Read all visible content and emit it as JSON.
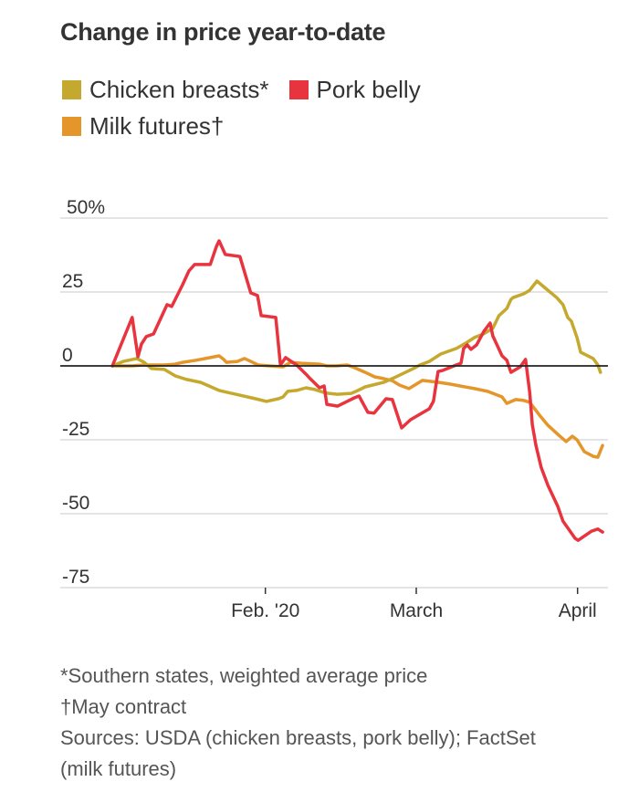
{
  "chart_data": {
    "type": "line",
    "title": "Change in price year-to-date",
    "xlabel": "",
    "ylabel": "",
    "x_units": "day of year 2020 (0 = Jan. 1)",
    "xlim": [
      0,
      97
    ],
    "ylim": [
      -75,
      50
    ],
    "yticks": [
      {
        "value": 50,
        "label": "50%"
      },
      {
        "value": 25,
        "label": "25"
      },
      {
        "value": 0,
        "label": "0"
      },
      {
        "value": -25,
        "label": "-25"
      },
      {
        "value": -50,
        "label": "-50"
      },
      {
        "value": -75,
        "label": "-75"
      }
    ],
    "xticks": [
      {
        "value": 31,
        "label": "Feb. '20"
      },
      {
        "value": 60,
        "label": "March"
      },
      {
        "value": 91,
        "label": "April"
      }
    ],
    "grid": true,
    "legend_position": "top-left",
    "series": [
      {
        "name": "Chicken breasts*",
        "color": "#C5A92F",
        "points": [
          [
            1.6,
            0
          ],
          [
            3.7,
            1.5
          ],
          [
            6.3,
            2.5
          ],
          [
            7.7,
            1.2
          ],
          [
            9.1,
            -0.9
          ],
          [
            11.6,
            -1.2
          ],
          [
            13.7,
            -3.4
          ],
          [
            15.9,
            -4.6
          ],
          [
            18.6,
            -5.6
          ],
          [
            22.1,
            -8.3
          ],
          [
            25.3,
            -9.6
          ],
          [
            29.1,
            -11.1
          ],
          [
            31.2,
            -12
          ],
          [
            33.5,
            -11.1
          ],
          [
            34.4,
            -10.5
          ],
          [
            35.3,
            -8.6
          ],
          [
            37,
            -8.3
          ],
          [
            38.8,
            -7.4
          ],
          [
            40.5,
            -8
          ],
          [
            42.3,
            -9
          ],
          [
            43.2,
            -9.3
          ],
          [
            44.9,
            -9.6
          ],
          [
            47.5,
            -9.3
          ],
          [
            48.4,
            -8.6
          ],
          [
            50.2,
            -7.1
          ],
          [
            53.7,
            -5.6
          ],
          [
            55.4,
            -4.3
          ],
          [
            57.2,
            -2.8
          ],
          [
            59.8,
            -0.6
          ],
          [
            60.7,
            0.3
          ],
          [
            62.5,
            1.5
          ],
          [
            64.7,
            4
          ],
          [
            67.7,
            5.9
          ],
          [
            69.5,
            7.7
          ],
          [
            71.2,
            9.6
          ],
          [
            72.9,
            10.8
          ],
          [
            74.7,
            12.7
          ],
          [
            75.9,
            17
          ],
          [
            77.4,
            19.4
          ],
          [
            78.2,
            22.5
          ],
          [
            78.6,
            23.1
          ],
          [
            80.7,
            24.4
          ],
          [
            81.8,
            25.6
          ],
          [
            83.2,
            28.7
          ],
          [
            85.3,
            25.6
          ],
          [
            87,
            23.1
          ],
          [
            88.2,
            20.7
          ],
          [
            89.1,
            16.4
          ],
          [
            89.8,
            15.1
          ],
          [
            90.9,
            9.6
          ],
          [
            91.6,
            4.6
          ],
          [
            94,
            2.5
          ],
          [
            94.9,
            0.3
          ],
          [
            95.4,
            -2.2
          ]
        ]
      },
      {
        "name": "Pork belly",
        "color": "#E8343E",
        "points": [
          [
            1.6,
            0
          ],
          [
            5.4,
            16.4
          ],
          [
            6.5,
            3.1
          ],
          [
            7.2,
            7.4
          ],
          [
            8.1,
            9.9
          ],
          [
            9.5,
            10.8
          ],
          [
            12.1,
            20.7
          ],
          [
            13,
            20.1
          ],
          [
            15.1,
            27.5
          ],
          [
            16.3,
            32.1
          ],
          [
            17.4,
            34.3
          ],
          [
            20.4,
            34.3
          ],
          [
            21.6,
            40.4
          ],
          [
            22.1,
            42.3
          ],
          [
            23.3,
            37.7
          ],
          [
            26.1,
            37
          ],
          [
            28.2,
            24.7
          ],
          [
            29.5,
            23.8
          ],
          [
            30.2,
            17
          ],
          [
            33,
            16.4
          ],
          [
            33.9,
            0.3
          ],
          [
            34.9,
            2.8
          ],
          [
            37,
            0.3
          ],
          [
            38.8,
            -2.8
          ],
          [
            39.6,
            -4.3
          ],
          [
            41.4,
            -7.4
          ],
          [
            42.3,
            -6.8
          ],
          [
            42.8,
            -13
          ],
          [
            44.9,
            -13.6
          ],
          [
            48.1,
            -10.8
          ],
          [
            49,
            -10.2
          ],
          [
            50.7,
            -15.7
          ],
          [
            51.9,
            -16
          ],
          [
            54.2,
            -11.1
          ],
          [
            55.4,
            -11.4
          ],
          [
            57.2,
            -21
          ],
          [
            58.9,
            -18.2
          ],
          [
            62.5,
            -14.5
          ],
          [
            63.3,
            -12
          ],
          [
            64.2,
            -1.9
          ],
          [
            65.1,
            -1.5
          ],
          [
            67.7,
            0.3
          ],
          [
            68.6,
            0.9
          ],
          [
            69.1,
            5.9
          ],
          [
            69.8,
            7.1
          ],
          [
            70.5,
            5.6
          ],
          [
            71.6,
            7.1
          ],
          [
            73,
            11.7
          ],
          [
            74.2,
            14.5
          ],
          [
            74.7,
            10.2
          ],
          [
            76.5,
            3.4
          ],
          [
            77.4,
            1.9
          ],
          [
            78.2,
            -2.2
          ],
          [
            80,
            -0.3
          ],
          [
            81,
            2.2
          ],
          [
            81.8,
            -9
          ],
          [
            82.3,
            -19.8
          ],
          [
            83,
            -26.9
          ],
          [
            84,
            -34.3
          ],
          [
            85.3,
            -40.4
          ],
          [
            87.2,
            -47.5
          ],
          [
            88.2,
            -52.5
          ],
          [
            90.5,
            -58.3
          ],
          [
            91.1,
            -59
          ],
          [
            93.7,
            -55.9
          ],
          [
            94.9,
            -55.2
          ],
          [
            95.8,
            -56.2
          ]
        ]
      },
      {
        "name": "Milk futures†",
        "color": "#E5962A",
        "points": [
          [
            1.6,
            0
          ],
          [
            5.4,
            0
          ],
          [
            7.7,
            0.3
          ],
          [
            11.6,
            0.3
          ],
          [
            13.7,
            0.6
          ],
          [
            15.1,
            1.2
          ],
          [
            17.7,
            1.9
          ],
          [
            20.4,
            2.8
          ],
          [
            22.1,
            3.4
          ],
          [
            23,
            2.2
          ],
          [
            23.5,
            1.2
          ],
          [
            25.6,
            1.5
          ],
          [
            27,
            2.5
          ],
          [
            28.2,
            1.5
          ],
          [
            29.6,
            0.3
          ],
          [
            31.8,
            0
          ],
          [
            34.4,
            -0.3
          ],
          [
            35.8,
            1.2
          ],
          [
            37.9,
            0.9
          ],
          [
            41.4,
            0.6
          ],
          [
            42.8,
            0
          ],
          [
            44.6,
            0
          ],
          [
            46.7,
            0.3
          ],
          [
            48.1,
            -0.6
          ],
          [
            50.2,
            -2.2
          ],
          [
            52,
            -3.7
          ],
          [
            53.7,
            -4.3
          ],
          [
            55.4,
            -5
          ],
          [
            56.8,
            -6.5
          ],
          [
            58.6,
            -7.7
          ],
          [
            61.2,
            -4.9
          ],
          [
            64.4,
            -5.6
          ],
          [
            66.7,
            -6.2
          ],
          [
            68.4,
            -6.8
          ],
          [
            71.2,
            -7.7
          ],
          [
            73.7,
            -8.6
          ],
          [
            76.5,
            -10.5
          ],
          [
            77.4,
            -12.7
          ],
          [
            79.1,
            -11.4
          ],
          [
            80.7,
            -11.7
          ],
          [
            81.8,
            -12.3
          ],
          [
            83.7,
            -16.7
          ],
          [
            85.3,
            -20.1
          ],
          [
            87.4,
            -23.5
          ],
          [
            88.8,
            -25.6
          ],
          [
            90,
            -23.8
          ],
          [
            90.9,
            -25
          ],
          [
            92.3,
            -29
          ],
          [
            94,
            -30.6
          ],
          [
            94.9,
            -30.9
          ],
          [
            95.8,
            -26.9
          ]
        ]
      }
    ],
    "footnotes": [
      "*Southern states, weighted average price",
      "†May contract",
      "Sources: USDA (chicken breasts, pork belly); FactSet",
      "(milk futures)"
    ]
  }
}
